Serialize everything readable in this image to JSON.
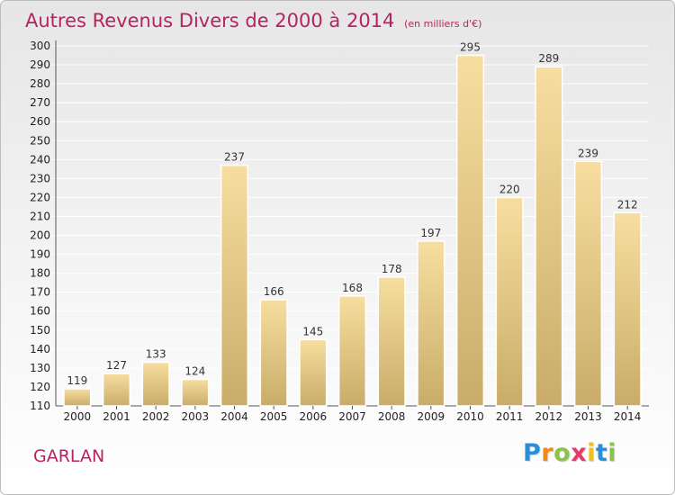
{
  "chart_data": {
    "type": "bar",
    "title": "Autres Revenus Divers de 2000 à 2014",
    "subtitle": "(en milliers d'€)",
    "categories": [
      "2000",
      "2001",
      "2002",
      "2003",
      "2004",
      "2005",
      "2006",
      "2007",
      "2008",
      "2009",
      "2010",
      "2011",
      "2012",
      "2013",
      "2014"
    ],
    "values": [
      119,
      127,
      133,
      124,
      237,
      166,
      145,
      168,
      178,
      197,
      295,
      220,
      289,
      239,
      212
    ],
    "data_labels": [
      "119",
      "127",
      "133",
      "124",
      "237",
      "166",
      "145",
      "168",
      "178",
      "197",
      "295",
      "220",
      "289",
      "239",
      "212"
    ],
    "ylim": [
      110,
      300
    ],
    "yticks": [
      "110",
      "120",
      "130",
      "140",
      "150",
      "160",
      "170",
      "180",
      "190",
      "200",
      "210",
      "220",
      "230",
      "240",
      "250",
      "260",
      "270",
      "280",
      "290",
      "300"
    ],
    "xlabel": "",
    "ylabel": "",
    "grid": true,
    "bar_color_top": "#f7dea0",
    "bar_color_bottom": "#c9ac69",
    "label_color": "#333333"
  },
  "footer": {
    "commune": "GARLAN"
  },
  "logo": {
    "letters": [
      "P",
      "r",
      "o",
      "x",
      "i",
      "t",
      "i"
    ],
    "colors": [
      "#2a8fd8",
      "#f08a1c",
      "#8bc34a",
      "#e63a6b",
      "#f0c020",
      "#2a8fd8",
      "#8bc34a"
    ]
  }
}
